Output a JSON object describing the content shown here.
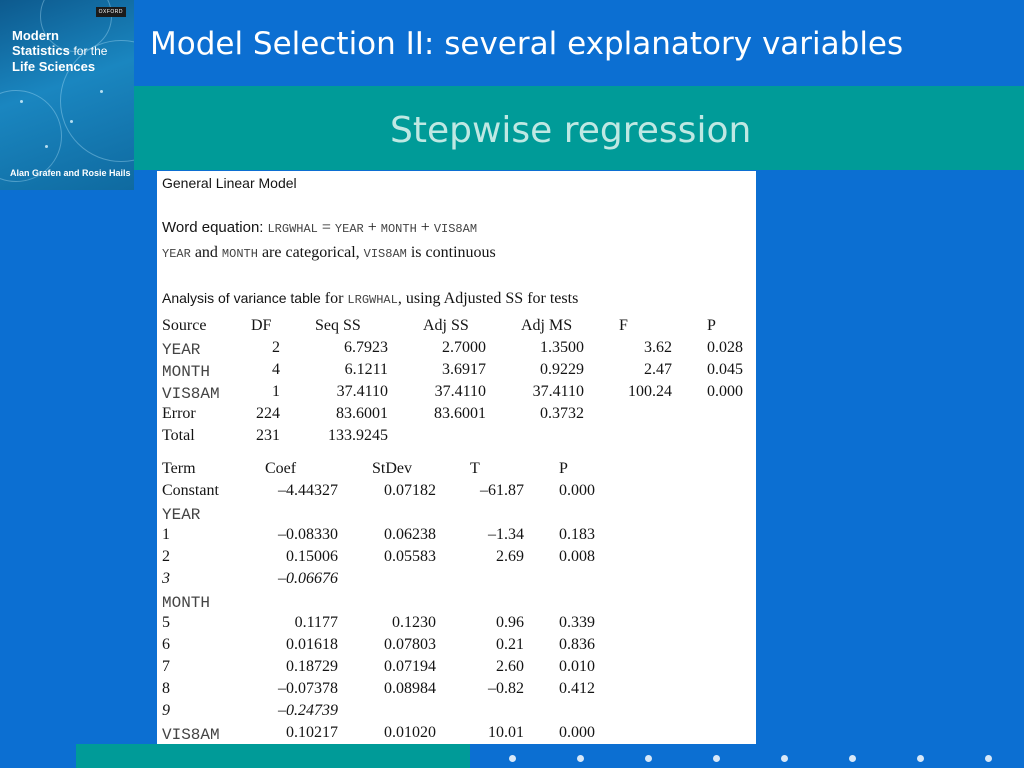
{
  "book": {
    "publisher": "OXFORD",
    "title_lines": [
      "Modern",
      "Statistics",
      "for the",
      "Life Sciences"
    ],
    "authors": "Alan Grafen and Rosie Hails"
  },
  "slide": {
    "title": "Model Selection II: several explanatory variables",
    "subtitle": "Stepwise regression"
  },
  "output": {
    "header": "General Linear Model",
    "word_eq_label": "Word equation",
    "word_eq_colon": ":",
    "word_eq": [
      "LRGWHAL",
      "=",
      "YEAR",
      "+",
      "MONTH",
      "+",
      "VIS8AM"
    ],
    "cat_line": [
      "YEAR",
      "and",
      "MONTH",
      "are categorical,",
      "VIS8AM",
      "is continuous"
    ],
    "anova_label": "Analysis of variance table",
    "anova_for": "for",
    "anova_var": "LRGWHAL",
    "anova_rest": ", using Adjusted SS for tests",
    "anova_headers": [
      "Source",
      "DF",
      "Seq SS",
      "Adj SS",
      "Adj MS",
      "F",
      "P"
    ],
    "anova_rows": [
      [
        "YEAR",
        "2",
        "6.7923",
        "2.7000",
        "1.3500",
        "3.62",
        "0.028"
      ],
      [
        "MONTH",
        "4",
        "6.1211",
        "3.6917",
        "0.9229",
        "2.47",
        "0.045"
      ],
      [
        "VIS8AM",
        "1",
        "37.4110",
        "37.4110",
        "37.4110",
        "100.24",
        "0.000"
      ],
      [
        "Error",
        "224",
        "83.6001",
        "83.6001",
        "0.3732",
        "",
        ""
      ],
      [
        "Total",
        "231",
        "133.9245",
        "",
        "",
        "",
        ""
      ]
    ],
    "coef_headers": [
      "Term",
      "Coef",
      "StDev",
      "T",
      "P"
    ],
    "coef_rows": [
      [
        "Constant",
        "–4.44327",
        "0.07182",
        "–61.87",
        "0.000"
      ],
      [
        "YEAR",
        "",
        "",
        "",
        ""
      ],
      [
        "1",
        "–0.08330",
        "0.06238",
        "–1.34",
        "0.183"
      ],
      [
        "2",
        "0.15006",
        "0.05583",
        "2.69",
        "0.008"
      ],
      [
        "3",
        "–0.06676",
        "",
        "",
        ""
      ],
      [
        "MONTH",
        "",
        "",
        "",
        ""
      ],
      [
        "5",
        "0.1177",
        "0.1230",
        "0.96",
        "0.339"
      ],
      [
        "6",
        "0.01618",
        "0.07803",
        "0.21",
        "0.836"
      ],
      [
        "7",
        "0.18729",
        "0.07194",
        "2.60",
        "0.010"
      ],
      [
        "8",
        "–0.07378",
        "0.08984",
        "–0.82",
        "0.412"
      ],
      [
        "9",
        "–0.24739",
        "",
        "",
        ""
      ],
      [
        "VIS8AM",
        "0.10217",
        "0.01020",
        "10.01",
        "0.000"
      ]
    ]
  },
  "colors": {
    "background": "#0c6fd2",
    "teal": "#009b98",
    "subtitle": "#bfe8e3"
  }
}
